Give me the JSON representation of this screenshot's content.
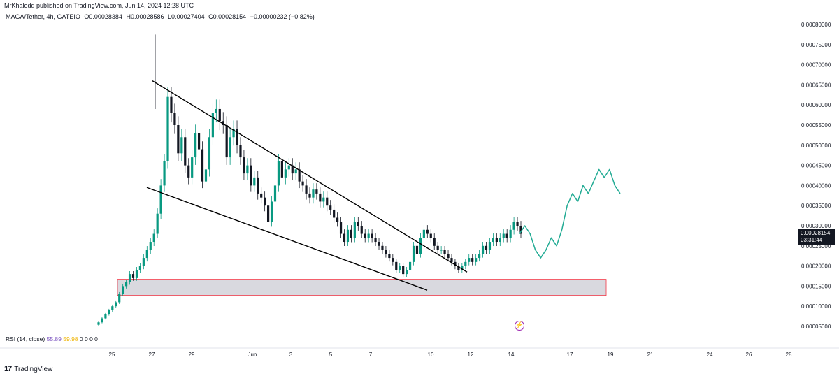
{
  "header": {
    "publisher": "MrKhaledd published on TradingView.com, Jun 14, 2024 12:28 UTC",
    "symbol": "MAGA/Tether, 4h, GATEIO",
    "open": "O0.00028384",
    "high": "H0.00028586",
    "low": "L0.00027404",
    "close": "C0.00028154",
    "change": "−0.00000232 (−0.82%)"
  },
  "current_price": {
    "value": "0.00028154",
    "countdown": "03:31:44"
  },
  "rsi_legend": {
    "label": "RSI (14, close)",
    "v1": "55.89",
    "v2": "59.98",
    "zeros": "0  0  0  0"
  },
  "footer": {
    "brand": "TradingView"
  },
  "icons": {
    "brand_icon": "tradingview-logo-icon",
    "event_icon": "lightning-icon"
  },
  "colors": {
    "up": "#089981",
    "down": "#131722",
    "forecast": "#22ab94",
    "zone_border": "#f23645",
    "zone_fill": "#d9d9df"
  },
  "chart_data": {
    "type": "candlestick",
    "symbol": "MAGA/Tether",
    "timeframe": "4h",
    "exchange": "GATEIO",
    "ylim": [
      3e-05,
      0.00082
    ],
    "y_ticks": [
      "0.00080000",
      "0.00075000",
      "0.00070000",
      "0.00065000",
      "0.00060000",
      "0.00055000",
      "0.00050000",
      "0.00045000",
      "0.00040000",
      "0.00035000",
      "0.00030000",
      "0.00025000",
      "0.00020000",
      "0.00015000",
      "0.00010000",
      "0.00005000"
    ],
    "y_tick_values": [
      0.0008,
      0.00075,
      0.0007,
      0.00065,
      0.0006,
      0.00055,
      0.0005,
      0.00045,
      0.0004,
      0.00035,
      0.0003,
      0.00025,
      0.0002,
      0.00015,
      0.0001,
      5e-05
    ],
    "x_ticks": [
      "25",
      "27",
      "29",
      "Jun",
      "3",
      "5",
      "7",
      "10",
      "12",
      "14",
      "17",
      "19",
      "21",
      "24",
      "26",
      "28"
    ],
    "last_price": 0.00028154,
    "candles_close": [
      6e-05,
      7e-05,
      8e-05,
      9e-05,
      0.0001,
      0.00011,
      0.00013,
      0.00015,
      0.00016,
      0.00018,
      0.00017,
      0.00019,
      0.0002,
      0.00022,
      0.00024,
      0.00026,
      0.00028,
      0.00033,
      0.0004,
      0.00046,
      0.00062,
      0.00058,
      0.00055,
      0.00048,
      0.00052,
      0.00045,
      0.00042,
      0.00047,
      0.00053,
      0.00049,
      0.00041,
      0.00044,
      0.00052,
      0.00058,
      0.00059,
      0.00056,
      0.00055,
      0.00047,
      0.00052,
      0.00054,
      0.0005,
      0.00047,
      0.00043,
      0.00045,
      0.0004,
      0.00042,
      0.00038,
      0.00037,
      0.00035,
      0.00031,
      0.00036,
      0.0004,
      0.00046,
      0.00042,
      0.00044,
      0.00045,
      0.00043,
      0.00044,
      0.00041,
      0.0004,
      0.00038,
      0.00037,
      0.00039,
      0.00038,
      0.00036,
      0.00037,
      0.00035,
      0.00034,
      0.00032,
      0.00031,
      0.00028,
      0.00026,
      0.00029,
      0.00027,
      0.00031,
      0.0003,
      0.00028,
      0.00027,
      0.00028,
      0.00027,
      0.00026,
      0.00025,
      0.00024,
      0.00023,
      0.00022,
      0.00021,
      0.00019,
      0.0002,
      0.00018,
      0.00019,
      0.00021,
      0.00025,
      0.00023,
      0.00027,
      0.00029,
      0.00028,
      0.00027,
      0.00025,
      0.00024,
      0.00024,
      0.00023,
      0.00022,
      0.00021,
      0.0002,
      0.00019,
      0.0002,
      0.00021,
      0.00022,
      0.00021,
      0.00022,
      0.00023,
      0.00025,
      0.00024,
      0.00026,
      0.00027,
      0.00026,
      0.00027,
      0.00028,
      0.00027,
      0.00029,
      0.00031,
      0.0003,
      0.00028
    ],
    "forecast_path": [
      0.00028,
      0.0003,
      0.00028,
      0.00024,
      0.00022,
      0.00024,
      0.00027,
      0.00025,
      0.00029,
      0.00035,
      0.00038,
      0.00036,
      0.0004,
      0.00038,
      0.00041,
      0.00044,
      0.00042,
      0.00044,
      0.0004,
      0.00038
    ],
    "trendlines": [
      {
        "name": "upper",
        "from": [
          0.00066
        ],
        "to": [
          0.00019
        ]
      },
      {
        "name": "lower",
        "from": [
          0.0004
        ],
        "to": [
          0.00014
        ]
      }
    ],
    "demand_zone": {
      "low": 0.000127,
      "high": 0.000167
    },
    "indicators": {
      "rsi_period": 14,
      "rsi_value": 55.89,
      "rsi_ma": 59.98
    }
  }
}
